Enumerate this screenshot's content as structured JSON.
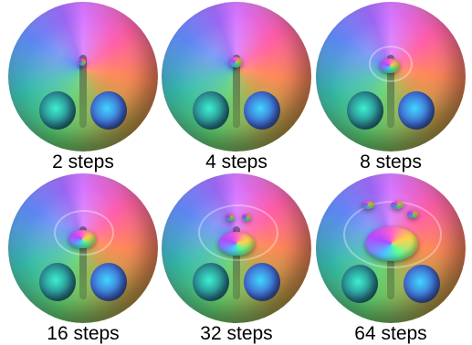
{
  "captions": [
    "2 steps",
    "4 steps",
    "8 steps",
    "16 steps",
    "32 steps",
    "64 steps"
  ]
}
